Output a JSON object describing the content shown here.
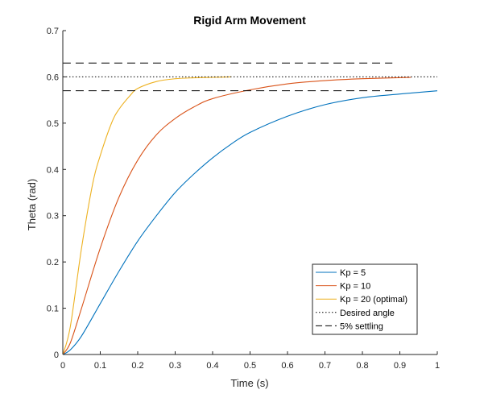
{
  "chart_data": {
    "type": "line",
    "title": "Rigid Arm Movement",
    "xlabel": "Time (s)",
    "ylabel": "Theta (rad)",
    "xlim": [
      0,
      1
    ],
    "ylim": [
      0,
      0.7
    ],
    "xticks": [
      "0",
      "0.1",
      "0.2",
      "0.3",
      "0.4",
      "0.5",
      "0.6",
      "0.7",
      "0.8",
      "0.9",
      "1"
    ],
    "yticks": [
      "0",
      "0.1",
      "0.2",
      "0.3",
      "0.4",
      "0.5",
      "0.6",
      "0.7"
    ],
    "grid": false,
    "legend_position": "bottom-right",
    "series": [
      {
        "name": "Kp = 5",
        "color": "#0072BD",
        "style": "solid",
        "x": [
          0,
          0.02,
          0.05,
          0.1,
          0.15,
          0.2,
          0.25,
          0.3,
          0.35,
          0.4,
          0.45,
          0.5,
          0.6,
          0.7,
          0.8,
          0.9,
          1.0
        ],
        "y": [
          0,
          0.01,
          0.04,
          0.11,
          0.18,
          0.245,
          0.3,
          0.35,
          0.39,
          0.425,
          0.455,
          0.48,
          0.515,
          0.54,
          0.555,
          0.563,
          0.57
        ]
      },
      {
        "name": "Kp = 10",
        "color": "#D95319",
        "style": "solid",
        "x": [
          0,
          0.02,
          0.05,
          0.1,
          0.15,
          0.2,
          0.25,
          0.3,
          0.35,
          0.4,
          0.5,
          0.6,
          0.7,
          0.8,
          0.93
        ],
        "y": [
          0,
          0.025,
          0.1,
          0.23,
          0.34,
          0.42,
          0.475,
          0.51,
          0.535,
          0.553,
          0.572,
          0.585,
          0.592,
          0.596,
          0.599
        ]
      },
      {
        "name": "Kp = 20 (optimal)",
        "color": "#EDB120",
        "style": "solid",
        "x": [
          0,
          0.02,
          0.05,
          0.08,
          0.1,
          0.13,
          0.15,
          0.18,
          0.2,
          0.25,
          0.3,
          0.35,
          0.4,
          0.45
        ],
        "y": [
          0,
          0.06,
          0.23,
          0.37,
          0.43,
          0.5,
          0.53,
          0.56,
          0.575,
          0.59,
          0.596,
          0.598,
          0.599,
          0.6
        ]
      },
      {
        "name": "Desired angle",
        "color": "#000000",
        "style": "dotted",
        "x": [
          0,
          1
        ],
        "y": [
          0.6,
          0.6
        ]
      },
      {
        "name": "5% settling",
        "color": "#000000",
        "style": "dashed",
        "x": [
          0,
          0.88
        ],
        "y": [
          0.63,
          0.63
        ]
      },
      {
        "name": "",
        "color": "#000000",
        "style": "dashed",
        "x": [
          0,
          0.88
        ],
        "y": [
          0.57,
          0.57
        ]
      }
    ]
  }
}
